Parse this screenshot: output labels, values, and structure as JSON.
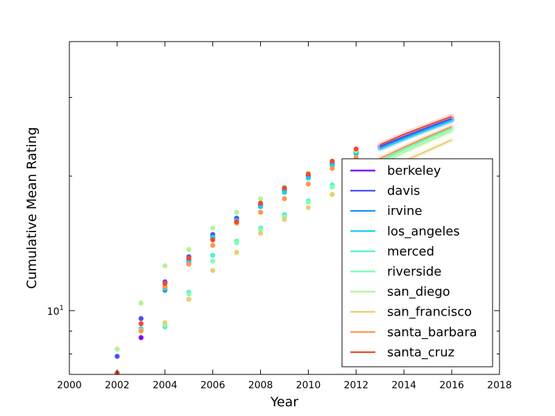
{
  "chart_data": {
    "type": "scatter",
    "title": "",
    "xlabel": "Year",
    "ylabel": "Cumulative Mean Rating",
    "xlim": [
      2000,
      2018
    ],
    "ylim": [
      7.2,
      40
    ],
    "yscale": "log",
    "x_ticks": [
      2000,
      2002,
      2004,
      2006,
      2008,
      2010,
      2012,
      2014,
      2016,
      2018
    ],
    "x_tick_labels": [
      "2000",
      "2002",
      "2004",
      "2006",
      "2008",
      "2010",
      "2012",
      "2014",
      "2016",
      "2018"
    ],
    "y_major_ticks": [
      10
    ],
    "y_major_tick_labels": [
      {
        "base": "10",
        "exp": "1"
      }
    ],
    "y_minor_ticks": [
      8,
      9,
      20,
      30,
      40
    ],
    "legend_position": "lower-right",
    "series": [
      {
        "name": "berkeley",
        "color": "#7f00ff",
        "points": [
          [
            2002,
            7.25
          ],
          [
            2003,
            8.7
          ],
          [
            2004,
            11.3
          ],
          [
            2005,
            13.0
          ],
          [
            2006,
            14.6
          ],
          [
            2007,
            16.0
          ],
          [
            2008,
            17.2
          ],
          [
            2009,
            18.6
          ],
          [
            2010,
            20.0
          ],
          [
            2011,
            21.3
          ],
          [
            2012,
            22.6
          ]
        ],
        "forecast": [
          [
            2013,
            23.2
          ],
          [
            2014,
            24.4
          ],
          [
            2015,
            25.6
          ],
          [
            2016,
            26.8
          ]
        ]
      },
      {
        "name": "davis",
        "color": "#4a4ffb",
        "points": [
          [
            2002,
            7.9
          ],
          [
            2003,
            9.6
          ],
          [
            2004,
            11.6
          ],
          [
            2005,
            13.2
          ],
          [
            2006,
            14.8
          ],
          [
            2007,
            16.1
          ],
          [
            2008,
            17.3
          ],
          [
            2009,
            18.6
          ],
          [
            2010,
            20.1
          ],
          [
            2011,
            21.4
          ],
          [
            2012,
            22.7
          ]
        ],
        "forecast": [
          [
            2013,
            23.3
          ],
          [
            2014,
            24.5
          ],
          [
            2015,
            25.7
          ],
          [
            2016,
            26.9
          ]
        ]
      },
      {
        "name": "irvine",
        "color": "#1996f3",
        "points": [
          [
            2002,
            7.25
          ],
          [
            2003,
            9.1
          ],
          [
            2004,
            11.1
          ],
          [
            2005,
            12.8
          ],
          [
            2006,
            14.5
          ],
          [
            2007,
            15.9
          ],
          [
            2008,
            17.1
          ],
          [
            2009,
            18.5
          ],
          [
            2010,
            19.9
          ],
          [
            2011,
            21.2
          ],
          [
            2012,
            22.5
          ]
        ],
        "forecast": [
          [
            2013,
            23.1
          ],
          [
            2014,
            24.3
          ],
          [
            2015,
            25.5
          ],
          [
            2016,
            26.7
          ]
        ]
      },
      {
        "name": "los_angeles",
        "color": "#1ccfe6",
        "points": [
          [
            2002,
            7.25
          ],
          [
            2003,
            9.1
          ],
          [
            2004,
            11.2
          ],
          [
            2005,
            12.9
          ],
          [
            2006,
            14.6
          ],
          [
            2007,
            15.9
          ],
          [
            2008,
            17.1
          ],
          [
            2009,
            18.4
          ],
          [
            2010,
            19.8
          ],
          [
            2011,
            21.1
          ],
          [
            2012,
            22.4
          ]
        ],
        "forecast": [
          [
            2013,
            23.0
          ],
          [
            2014,
            24.2
          ],
          [
            2015,
            25.4
          ],
          [
            2016,
            26.6
          ]
        ]
      },
      {
        "name": "merced",
        "color": "#4df3ce",
        "points": [
          [
            2002,
            7.25
          ],
          [
            2003,
            9.0
          ],
          [
            2004,
            9.2
          ],
          [
            2005,
            11.0
          ],
          [
            2006,
            13.3
          ],
          [
            2007,
            14.3
          ],
          [
            2008,
            15.3
          ],
          [
            2009,
            16.4
          ],
          [
            2010,
            17.6
          ],
          [
            2011,
            19.1
          ],
          [
            2012,
            20.7
          ]
        ],
        "forecast": [
          [
            2013,
            21.6
          ],
          [
            2014,
            23.0
          ],
          [
            2015,
            24.3
          ],
          [
            2016,
            25.6
          ]
        ]
      },
      {
        "name": "riverside",
        "color": "#80feb3",
        "points": [
          [
            2002,
            7.25
          ],
          [
            2003,
            9.05
          ],
          [
            2004,
            9.3
          ],
          [
            2005,
            10.9
          ],
          [
            2006,
            12.9
          ],
          [
            2007,
            14.2
          ],
          [
            2008,
            15.2
          ],
          [
            2009,
            16.2
          ],
          [
            2010,
            17.5
          ],
          [
            2011,
            18.9
          ],
          [
            2012,
            20.6
          ]
        ],
        "forecast": [
          [
            2013,
            21.5
          ],
          [
            2014,
            22.9
          ],
          [
            2015,
            24.2
          ],
          [
            2016,
            25.5
          ]
        ]
      },
      {
        "name": "san_diego",
        "color": "#b3f396",
        "points": [
          [
            2002,
            8.2
          ],
          [
            2003,
            10.4
          ],
          [
            2004,
            12.6
          ],
          [
            2005,
            13.7
          ],
          [
            2006,
            15.3
          ],
          [
            2007,
            16.6
          ],
          [
            2008,
            17.8
          ],
          [
            2009,
            18.9
          ],
          [
            2010,
            20.3
          ],
          [
            2011,
            21.6
          ],
          [
            2012,
            22.8
          ]
        ],
        "forecast": [
          [
            2013,
            21.2
          ],
          [
            2014,
            22.6
          ],
          [
            2015,
            23.9
          ],
          [
            2016,
            25.2
          ]
        ]
      },
      {
        "name": "san_francisco",
        "color": "#e6cf74",
        "points": [
          [
            2002,
            7.25
          ],
          [
            2003,
            9.0
          ],
          [
            2004,
            9.4
          ],
          [
            2005,
            10.6
          ],
          [
            2006,
            12.3
          ],
          [
            2007,
            13.5
          ],
          [
            2008,
            14.9
          ],
          [
            2009,
            16.0
          ],
          [
            2010,
            17.0
          ],
          [
            2011,
            18.2
          ],
          [
            2012,
            19.8
          ]
        ],
        "forecast": [
          [
            2013,
            20.3
          ],
          [
            2014,
            21.6
          ],
          [
            2015,
            22.8
          ],
          [
            2016,
            24.1
          ]
        ]
      },
      {
        "name": "santa_barbara",
        "color": "#ff9650",
        "points": [
          [
            2002,
            7.25
          ],
          [
            2003,
            9.0
          ],
          [
            2004,
            11.3
          ],
          [
            2005,
            12.7
          ],
          [
            2006,
            14.0
          ],
          [
            2007,
            15.7
          ],
          [
            2008,
            16.6
          ],
          [
            2009,
            17.8
          ],
          [
            2010,
            19.2
          ],
          [
            2011,
            20.8
          ],
          [
            2012,
            22.0
          ]
        ],
        "forecast": [
          [
            2013,
            21.9
          ],
          [
            2014,
            23.2
          ],
          [
            2015,
            24.5
          ],
          [
            2016,
            25.8
          ]
        ]
      },
      {
        "name": "santa_cruz",
        "color": "#f04a2b",
        "points": [
          [
            2002,
            7.25
          ],
          [
            2003,
            9.35
          ],
          [
            2004,
            11.5
          ],
          [
            2005,
            13.1
          ],
          [
            2006,
            14.4
          ],
          [
            2007,
            15.8
          ],
          [
            2008,
            17.4
          ],
          [
            2009,
            18.8
          ],
          [
            2010,
            20.2
          ],
          [
            2011,
            21.6
          ],
          [
            2012,
            23.0
          ]
        ],
        "forecast": [
          [
            2013,
            23.5
          ],
          [
            2014,
            24.8
          ],
          [
            2015,
            26.0
          ],
          [
            2016,
            27.2
          ]
        ]
      }
    ]
  }
}
